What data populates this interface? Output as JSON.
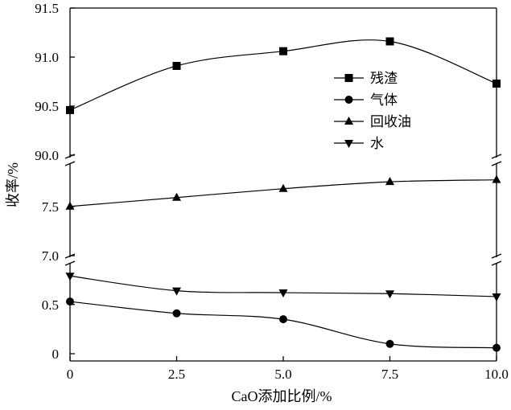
{
  "chart_data": {
    "type": "line",
    "xlabel": "CaO添加比例/%",
    "ylabel": "收率/%",
    "x": [
      0,
      2.5,
      5.0,
      7.5,
      10.0
    ],
    "x_tick_labels": [
      "0",
      "2.5",
      "5.0",
      "7.5",
      "10.0"
    ],
    "xlim": [
      0,
      10
    ],
    "y_scale": "broken",
    "panels": [
      {
        "ylim": [
          90.0,
          91.5
        ],
        "ticks": [
          90.0,
          90.5,
          91.0,
          91.5
        ],
        "tick_labels": [
          "90.0",
          "90.5",
          "91.0",
          "91.5"
        ]
      },
      {
        "ylim": [
          7.0,
          7.8
        ],
        "ticks": [
          7.0,
          7.5
        ],
        "tick_labels": [
          "7.0",
          "7.5"
        ]
      },
      {
        "ylim": [
          0,
          0.8
        ],
        "ticks": [
          0,
          0.5
        ],
        "tick_labels": [
          "0",
          "0.5"
        ]
      }
    ],
    "series": [
      {
        "name": "残渣",
        "marker": "square",
        "panel": 0,
        "values": [
          90.46,
          90.91,
          91.06,
          91.16,
          90.73
        ]
      },
      {
        "name": "气体",
        "marker": "circle",
        "panel": 2,
        "values": [
          0.53,
          0.41,
          0.35,
          0.1,
          0.06
        ]
      },
      {
        "name": "回收油",
        "marker": "triangle-up",
        "panel": 1,
        "values": [
          7.5,
          7.59,
          7.68,
          7.75,
          7.77
        ]
      },
      {
        "name": "水",
        "marker": "triangle-down",
        "panel": 2,
        "values": [
          0.79,
          0.64,
          0.62,
          0.61,
          0.58
        ]
      }
    ],
    "grid": false,
    "legend_position": "right"
  }
}
